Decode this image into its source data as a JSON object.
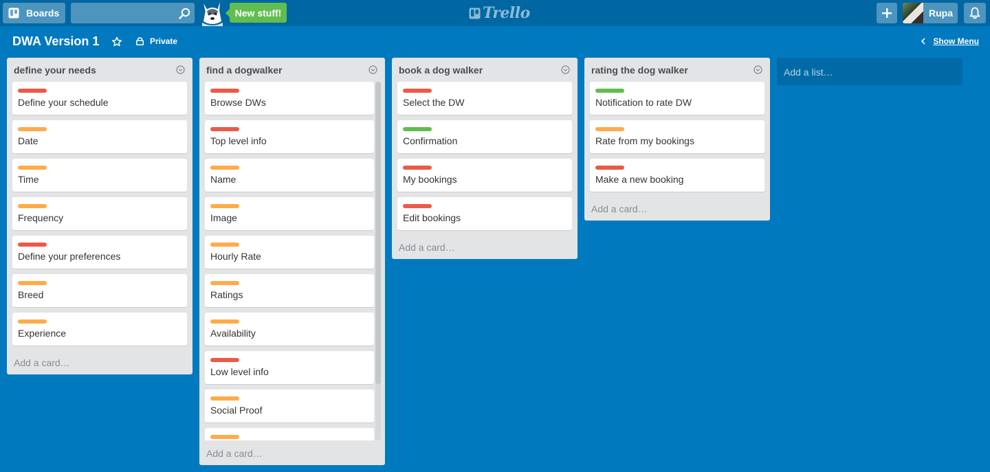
{
  "header": {
    "boards_label": "Boards",
    "search_value": "",
    "new_stuff_label": "New stuff!",
    "logo_text": "Trello",
    "user_name": "Rupa"
  },
  "board": {
    "title": "DWA Version 1",
    "visibility": "Private",
    "show_menu": "Show Menu"
  },
  "colors": {
    "red": "#eb5a46",
    "orange": "#ffab4a",
    "green": "#61bd4f",
    "board_bg": "#0079bf"
  },
  "lists": [
    {
      "title": "define your needs",
      "add_card": "Add a card…",
      "cards": [
        {
          "label": "red",
          "text": "Define your schedule"
        },
        {
          "label": "orange",
          "text": "Date"
        },
        {
          "label": "orange",
          "text": "Time"
        },
        {
          "label": "orange",
          "text": "Frequency"
        },
        {
          "label": "red",
          "text": "Define your preferences"
        },
        {
          "label": "orange",
          "text": "Breed"
        },
        {
          "label": "orange",
          "text": "Experience"
        }
      ]
    },
    {
      "title": "find a dogwalker",
      "add_card": "Add a card…",
      "cards": [
        {
          "label": "red",
          "text": "Browse DWs"
        },
        {
          "label": "red",
          "text": "Top level info"
        },
        {
          "label": "orange",
          "text": "Name"
        },
        {
          "label": "orange",
          "text": "Image"
        },
        {
          "label": "orange",
          "text": "Hourly Rate"
        },
        {
          "label": "orange",
          "text": "Ratings"
        },
        {
          "label": "orange",
          "text": "Availability"
        },
        {
          "label": "red",
          "text": "Low level info"
        },
        {
          "label": "orange",
          "text": "Social Proof"
        },
        {
          "label": "orange",
          "text": ""
        }
      ]
    },
    {
      "title": "book a dog walker",
      "add_card": "Add a card…",
      "cards": [
        {
          "label": "red",
          "text": "Select the DW"
        },
        {
          "label": "green",
          "text": "Confirmation"
        },
        {
          "label": "red",
          "text": "My bookings"
        },
        {
          "label": "red",
          "text": "Edit bookings"
        }
      ]
    },
    {
      "title": "rating the dog walker",
      "add_card": "Add a card…",
      "cards": [
        {
          "label": "green",
          "text": "Notification to rate DW"
        },
        {
          "label": "orange",
          "text": "Rate from my bookings"
        },
        {
          "label": "red",
          "text": "Make a new booking"
        }
      ]
    }
  ],
  "add_list": "Add a list…"
}
